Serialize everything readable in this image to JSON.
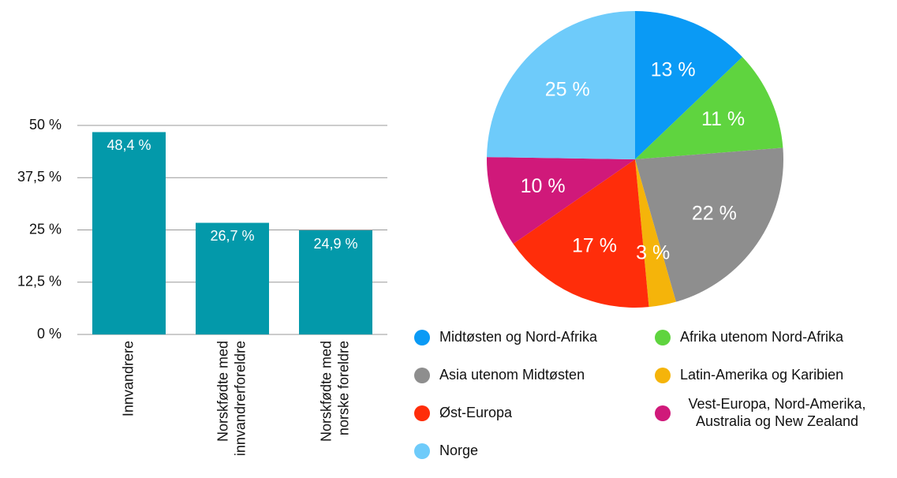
{
  "chart_data": [
    {
      "type": "bar",
      "categories": [
        "Innvandrere",
        "Norskfødte med\ninnvandrerforeldre",
        "Norskfødte med\nnorske foreldre"
      ],
      "values": [
        48.4,
        26.7,
        24.9
      ],
      "value_labels": [
        "48,4 %",
        "26,7 %",
        "24,9 %"
      ],
      "color": "#0399aa",
      "ylim": [
        0,
        50
      ],
      "yticks": [
        {
          "value": 0,
          "label": "0 %"
        },
        {
          "value": 12.5,
          "label": "12,5 %"
        },
        {
          "value": 25,
          "label": "25 %"
        },
        {
          "value": 37.5,
          "label": "37,5 %"
        },
        {
          "value": 50,
          "label": "50 %"
        }
      ],
      "grid": true
    },
    {
      "type": "pie",
      "categories": [
        "Midtøsten og Nord-Afrika",
        "Afrika utenom Nord-Afrika",
        "Asia utenom Midtøsten",
        "Latin-Amerika og Karibien",
        "Øst-Europa",
        "Vest-Europa, Nord-Amerika,\nAustralia og New Zealand",
        "Norge"
      ],
      "values": [
        13,
        11,
        22,
        3,
        17,
        10,
        25
      ],
      "value_labels": [
        "13 %",
        "11 %",
        "22 %",
        "3 %",
        "17 %",
        "10 %",
        "25 %"
      ],
      "colors": [
        "#0a9af5",
        "#5fd43f",
        "#8e8e8e",
        "#f5b40a",
        "#ff2d0a",
        "#d0197a",
        "#6ecbfa"
      ]
    }
  ]
}
